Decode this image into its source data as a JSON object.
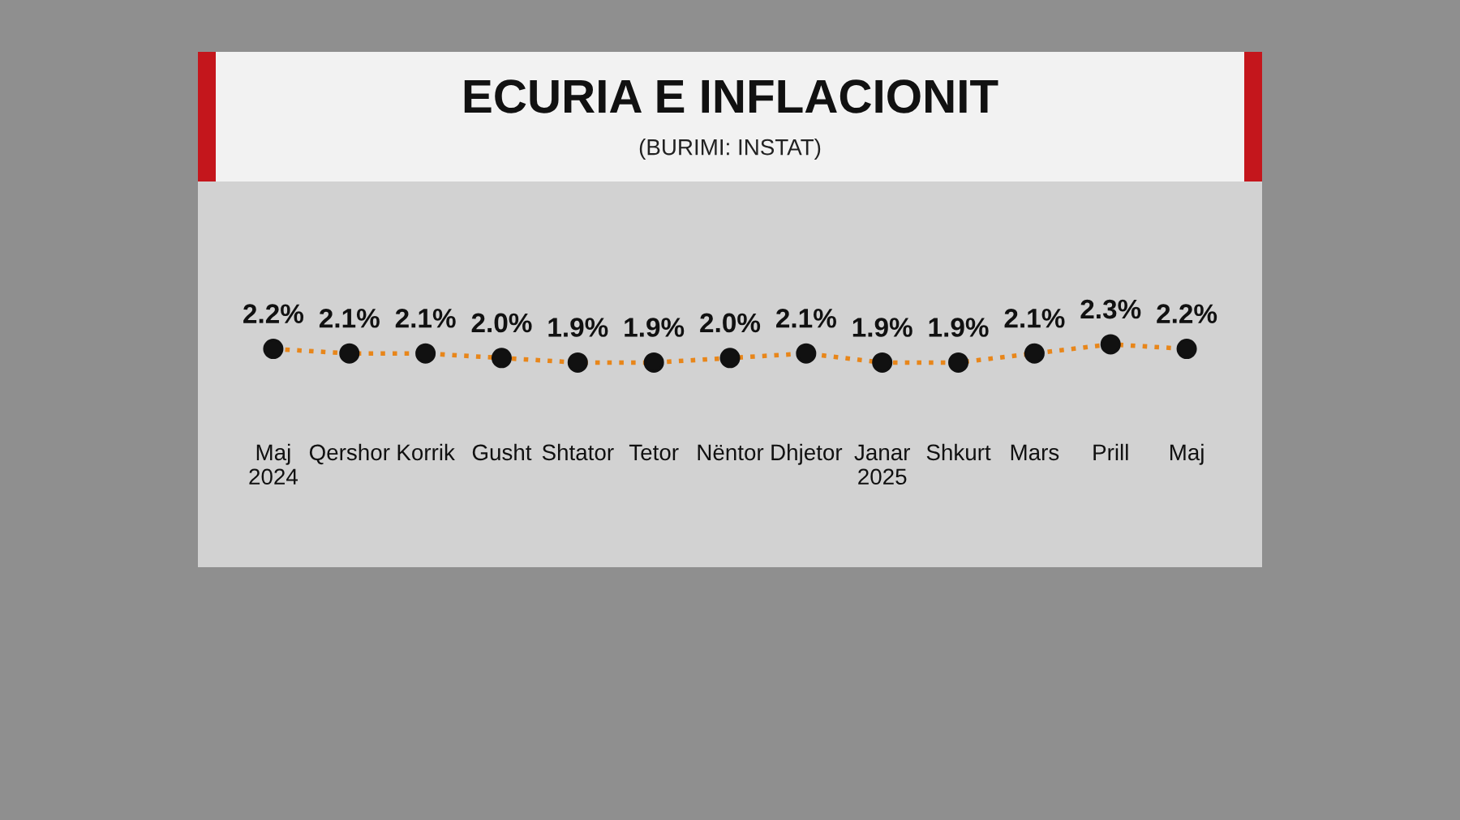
{
  "chart_data": {
    "type": "line",
    "title": "ECURIA E INFLACIONIT",
    "subtitle": "(BURIMI: INSTAT)",
    "categories": [
      "Maj\n2024",
      "Qershor",
      "Korrik",
      "Gusht",
      "Shtator",
      "Tetor",
      "Nëntor",
      "Dhjetor",
      "Janar\n2025",
      "Shkurt",
      "Mars",
      "Prill",
      "Maj"
    ],
    "series": [
      {
        "color": "#e8861a",
        "values": [
          2.2,
          2.1,
          2.1,
          2.0,
          1.9,
          1.9,
          2.0,
          2.1,
          1.9,
          1.9,
          2.1,
          2.3,
          2.2
        ],
        "value_labels": [
          "2.2%",
          "2.1%",
          "2.1%",
          "2.0%",
          "1.9%",
          "1.9%",
          "2.0%",
          "2.1%",
          "1.9%",
          "1.9%",
          "2.1%",
          "2.3%",
          "2.2%"
        ]
      }
    ],
    "marker": "circle",
    "line_style": "dotted",
    "grid": false,
    "legend": false
  }
}
